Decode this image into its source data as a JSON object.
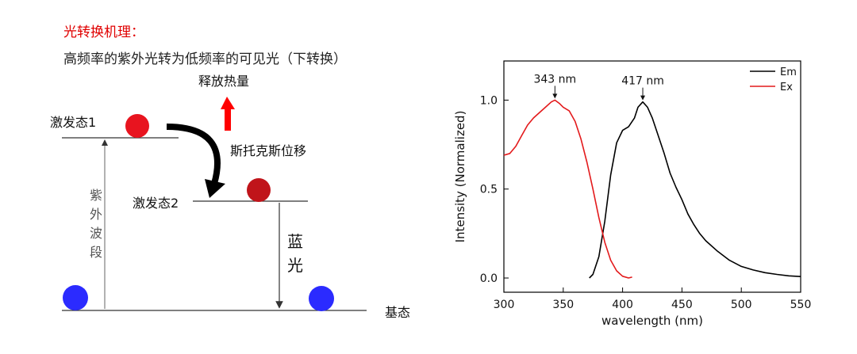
{
  "diagram": {
    "title": "光转换机理：",
    "subtitle": "高频率的紫外光转为低频率的可见光（下转换）",
    "heat_label": "释放热量",
    "excited1_label": "激发态1",
    "excited2_label": "激发态2",
    "ground_label": "基态",
    "stokes_label": "斯托克斯位移",
    "uv_band_label": [
      "紫",
      "外",
      "波",
      "段"
    ],
    "blue_light_label": [
      "蓝",
      "光"
    ],
    "colors": {
      "electron_excited1": "#e8141f",
      "electron_excited2": "#c0141a",
      "electron_ground": "#2b2bff",
      "heat_arrow": "#ff0000",
      "title_red": "#e00000"
    }
  },
  "chart_data": {
    "type": "line",
    "xlabel": "wavelength (nm)",
    "ylabel": "Intensity (Normalized)",
    "xlim": [
      300,
      550
    ],
    "ylim": [
      -0.08,
      1.22
    ],
    "xticks": [
      300,
      350,
      400,
      450,
      500,
      550
    ],
    "yticks": [
      0.0,
      0.5,
      1.0
    ],
    "ytick_labels": [
      "0.0",
      "0.5",
      "1.0"
    ],
    "legend_position": "top-right",
    "series": [
      {
        "name": "Em",
        "color": "#000000",
        "x": [
          372,
          375,
          380,
          385,
          390,
          395,
          400,
          405,
          410,
          413,
          417,
          421,
          425,
          430,
          435,
          440,
          445,
          450,
          455,
          460,
          465,
          470,
          480,
          490,
          500,
          510,
          520,
          530,
          540,
          550
        ],
        "y": [
          0.0,
          0.02,
          0.12,
          0.32,
          0.58,
          0.76,
          0.83,
          0.85,
          0.9,
          0.96,
          0.99,
          0.96,
          0.9,
          0.8,
          0.7,
          0.59,
          0.51,
          0.44,
          0.36,
          0.3,
          0.25,
          0.21,
          0.15,
          0.1,
          0.065,
          0.045,
          0.03,
          0.02,
          0.012,
          0.008
        ]
      },
      {
        "name": "Ex",
        "color": "#e31a1c",
        "x": [
          300,
          305,
          310,
          315,
          320,
          325,
          330,
          335,
          340,
          343,
          347,
          350,
          355,
          360,
          365,
          370,
          375,
          380,
          385,
          390,
          395,
          400,
          405,
          408
        ],
        "y": [
          0.69,
          0.7,
          0.74,
          0.8,
          0.86,
          0.9,
          0.93,
          0.96,
          0.99,
          1.0,
          0.98,
          0.96,
          0.94,
          0.88,
          0.78,
          0.65,
          0.5,
          0.34,
          0.2,
          0.1,
          0.04,
          0.01,
          0.0,
          0.005
        ]
      }
    ],
    "annotations": [
      {
        "text": "343 nm",
        "x": 343,
        "y": 1.0
      },
      {
        "text": "417 nm",
        "x": 417,
        "y": 0.99
      }
    ]
  }
}
